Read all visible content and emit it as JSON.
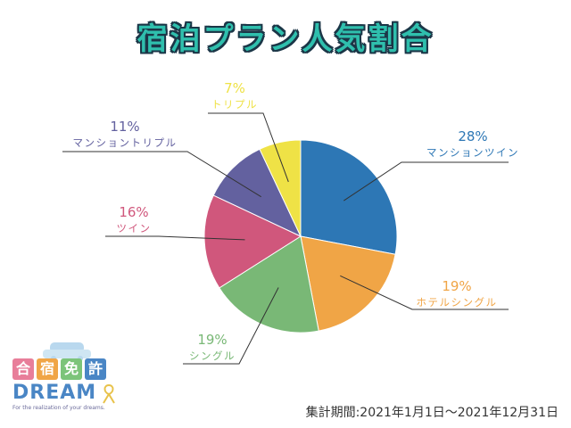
{
  "title": "宿泊プラン人気割合",
  "chart_data": {
    "type": "pie",
    "slices": [
      {
        "label": "マンションツイン",
        "value": 28,
        "value_label": "28%",
        "color": "#2d77b5"
      },
      {
        "label": "ホテルシングル",
        "value": 19,
        "value_label": "19%",
        "color": "#f0a546"
      },
      {
        "label": "シングル",
        "value": 19,
        "value_label": "19%",
        "color": "#79b876"
      },
      {
        "label": "ツイン",
        "value": 16,
        "value_label": "16%",
        "color": "#d0577c"
      },
      {
        "label": "マンショントリプル",
        "value": 11,
        "value_label": "11%",
        "color": "#63619f"
      },
      {
        "label": "トリプル",
        "value": 7,
        "value_label": "7%",
        "color": "#efe246"
      }
    ]
  },
  "period": "集計期間:2021年1月1日～2021年12月31日",
  "logo": {
    "kanji": [
      "合",
      "宿",
      "免",
      "許"
    ],
    "kanji_colors": [
      "#e87e9a",
      "#f0a546",
      "#7cc47a",
      "#4a86c5"
    ],
    "word": "DREAM",
    "tagline": "For the realization of your dreams."
  }
}
